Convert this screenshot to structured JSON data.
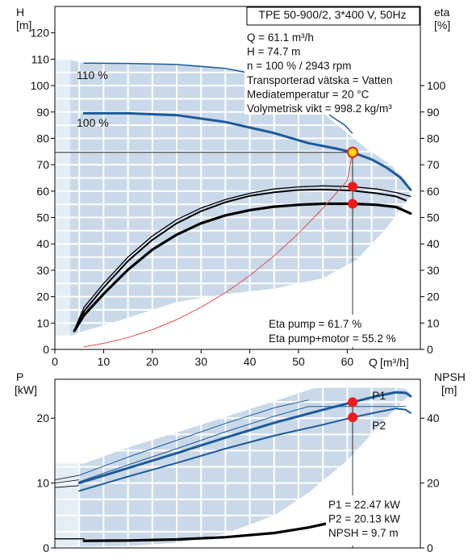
{
  "colors": {
    "envelope": "#c9d9e9",
    "envelope_light": "#e4eef7",
    "curve_blue": "#1d5a99",
    "curve_black": "#000000",
    "system_curve": "#e24a4a",
    "op_point": "#f01a1a",
    "op_point_yellow": "#ffe000",
    "grid": "#ffffff"
  },
  "chart_data": [
    {
      "type": "line",
      "title": "TPE 50-900/2, 3*400 V, 50Hz",
      "xlabel": "Q [m³/h]",
      "x_axis_title": "Q",
      "x_unit": "[m³/h]",
      "ylabel": "H\n[m]",
      "y_axis_title": "H",
      "y_unit": "[m]",
      "y2label": "eta\n[%]",
      "y2_axis_title": "eta",
      "y2_unit": "[%]",
      "xlim": [
        0,
        75
      ],
      "ylim": [
        0,
        130
      ],
      "y2lim": [
        0,
        130
      ],
      "x_ticks": [
        0,
        10,
        20,
        30,
        40,
        50,
        60
      ],
      "y_ticks": [
        0,
        10,
        20,
        30,
        40,
        50,
        60,
        70,
        80,
        90,
        100,
        110,
        120
      ],
      "y2_ticks": [
        0,
        10,
        20,
        30,
        40,
        50,
        60,
        70,
        80,
        90,
        100
      ],
      "grid": true,
      "info_lines": [
        "Q = 61.1 m³/h",
        "H = 74.7 m",
        "n = 100 % / 2943 rpm",
        "Transporterad vätska = Vatten",
        "Mediatemperatur = 20 °C",
        "Volymetrisk vikt = 998.2 kg/m³"
      ],
      "eta_lines": [
        "Eta pump = 61.7 %",
        "Eta pump+motor = 55.2 %"
      ],
      "envelope": {
        "upper": [
          [
            2.5,
            110
          ],
          [
            6,
            108.5
          ],
          [
            20,
            108.3
          ],
          [
            30,
            107.8
          ],
          [
            40,
            105.5
          ],
          [
            50,
            98
          ],
          [
            58,
            85
          ],
          [
            64,
            76
          ],
          [
            69,
            70
          ],
          [
            72,
            64
          ],
          [
            73,
            58
          ]
        ],
        "lower": [
          [
            73,
            58
          ],
          [
            68,
            46
          ],
          [
            62,
            34
          ],
          [
            55,
            27
          ],
          [
            45,
            23
          ],
          [
            35,
            21
          ],
          [
            25,
            18
          ],
          [
            15,
            12
          ],
          [
            8,
            8
          ],
          [
            6,
            7
          ],
          [
            3,
            5
          ],
          [
            2.5,
            110
          ]
        ],
        "light_region": [
          [
            0,
            110
          ],
          [
            3.2,
            110
          ],
          [
            3.2,
            5
          ],
          [
            0,
            5
          ]
        ]
      },
      "series": [
        {
          "name": "110 %",
          "role": "head",
          "style": "blue-thin",
          "points": [
            [
              6,
              108.5
            ],
            [
              15,
              108.4
            ],
            [
              25,
              108.0
            ],
            [
              35,
              106.5
            ],
            [
              42,
              104
            ],
            [
              48,
              100
            ],
            [
              53,
              94
            ],
            [
              57,
              88
            ],
            [
              59.5,
              85
            ],
            [
              61,
              82
            ]
          ]
        },
        {
          "name": "100 %",
          "role": "head",
          "style": "blue-thick",
          "points": [
            [
              6,
              89.5
            ],
            [
              15,
              89.5
            ],
            [
              25,
              88.8
            ],
            [
              35,
              86.2
            ],
            [
              45,
              82
            ],
            [
              52,
              78.2
            ],
            [
              58,
              76
            ],
            [
              61.1,
              74.7
            ],
            [
              65,
              72
            ],
            [
              68,
              69
            ],
            [
              71,
              65
            ],
            [
              73,
              60.5
            ]
          ]
        },
        {
          "name": "",
          "role": "eta-pump-upper",
          "style": "black-thin",
          "points": [
            [
              4,
              7.5
            ],
            [
              6,
              16
            ],
            [
              10,
              25
            ],
            [
              15,
              35
            ],
            [
              20,
              43
            ],
            [
              25,
              49.2
            ],
            [
              30,
              53.6
            ],
            [
              35,
              56.8
            ],
            [
              40,
              59.2
            ],
            [
              45,
              60.8
            ],
            [
              50,
              61.6
            ],
            [
              55,
              62
            ],
            [
              61.1,
              61.7
            ],
            [
              66,
              60.8
            ],
            [
              70,
              59.5
            ],
            [
              73,
              58
            ]
          ]
        },
        {
          "name": "",
          "role": "eta-pump",
          "style": "black-med",
          "points": [
            [
              4,
              7.2
            ],
            [
              6,
              14.5
            ],
            [
              10,
              23.5
            ],
            [
              15,
              33.5
            ],
            [
              20,
              41.5
            ],
            [
              25,
              47.8
            ],
            [
              30,
              52.4
            ],
            [
              35,
              55.8
            ],
            [
              40,
              58.2
            ],
            [
              45,
              59.6
            ],
            [
              50,
              60.4
            ],
            [
              55,
              60.6
            ],
            [
              61.1,
              60.2
            ],
            [
              66,
              59.2
            ],
            [
              70,
              58
            ],
            [
              72,
              56.5
            ]
          ]
        },
        {
          "name": "",
          "role": "eta-pump-motor",
          "style": "black-thick",
          "points": [
            [
              4,
              7
            ],
            [
              6,
              13
            ],
            [
              10,
              21
            ],
            [
              15,
              30.2
            ],
            [
              20,
              37.8
            ],
            [
              25,
              43.5
            ],
            [
              30,
              47.8
            ],
            [
              35,
              50.8
            ],
            [
              40,
              52.8
            ],
            [
              45,
              54.1
            ],
            [
              50,
              54.8
            ],
            [
              55,
              55.2
            ],
            [
              61.1,
              55.2
            ],
            [
              66,
              54.8
            ],
            [
              70,
              54
            ],
            [
              73,
              51.5
            ]
          ]
        },
        {
          "name": "",
          "role": "system-curve",
          "style": "red-thin",
          "points": [
            [
              6,
              1
            ],
            [
              10,
              2.3
            ],
            [
              15,
              4.5
            ],
            [
              20,
              7.5
            ],
            [
              25,
              11.3
            ],
            [
              30,
              16
            ],
            [
              35,
              21.5
            ],
            [
              40,
              28
            ],
            [
              45,
              35.5
            ],
            [
              50,
              44
            ],
            [
              55,
              53.5
            ],
            [
              60,
              64
            ],
            [
              61.1,
              74.7
            ]
          ]
        }
      ],
      "operating_points": [
        {
          "x": 61.1,
          "y": 74.7,
          "style": "yellow"
        },
        {
          "x": 61.1,
          "y": 61.7,
          "style": "red"
        },
        {
          "x": 61.1,
          "y": 55.2,
          "style": "red"
        }
      ],
      "series_labels": [
        "110 %",
        "100 %"
      ]
    },
    {
      "type": "line",
      "ylabel": "P\n[kW]",
      "y_axis_title": "P",
      "y_unit": "[kW]",
      "y2label": "NPSH\n[m]",
      "y2_axis_title": "NPSH",
      "y2_unit": "[m]",
      "xlim": [
        0,
        75
      ],
      "ylim": [
        0,
        26
      ],
      "y2lim": [
        0,
        52
      ],
      "y_ticks": [
        0,
        10,
        20
      ],
      "y2_ticks": [
        0,
        20,
        40
      ],
      "grid": true,
      "info_lines": [
        "P1 = 22.47 kW",
        "P2 = 20.13 kW",
        "NPSH = 9.7 m"
      ],
      "envelope": {
        "upper": [
          [
            6,
            13
          ],
          [
            15,
            15.5
          ],
          [
            25,
            17.8
          ],
          [
            35,
            20.2
          ],
          [
            45,
            22.6
          ],
          [
            53,
            24.6
          ],
          [
            55,
            24.7
          ],
          [
            70,
            24.7
          ],
          [
            72,
            24.5
          ],
          [
            73,
            23.8
          ]
        ],
        "lower": [
          [
            73,
            23.8
          ],
          [
            68,
            20
          ],
          [
            60,
            13.5
          ],
          [
            52,
            8.5
          ],
          [
            45,
            5
          ],
          [
            35,
            2.2
          ],
          [
            25,
            0.8
          ],
          [
            15,
            0.3
          ],
          [
            5,
            0.2
          ],
          [
            5,
            13
          ]
        ]
      },
      "series": [
        {
          "name": "P1",
          "role": "p1",
          "style": "blue-thick",
          "points": [
            [
              5,
              10
            ],
            [
              15,
              12.3
            ],
            [
              25,
              14.6
            ],
            [
              35,
              17
            ],
            [
              45,
              19.3
            ],
            [
              55,
              21.3
            ],
            [
              61.1,
              22.47
            ],
            [
              66,
              23.4
            ],
            [
              70,
              24
            ],
            [
              72,
              23.9
            ],
            [
              73,
              23.4
            ]
          ]
        },
        {
          "name": "P2",
          "role": "p2",
          "style": "blue-med",
          "points": [
            [
              5,
              8.8
            ],
            [
              15,
              11
            ],
            [
              25,
              13.1
            ],
            [
              35,
              15.3
            ],
            [
              45,
              17.3
            ],
            [
              55,
              19
            ],
            [
              61.1,
              20.13
            ],
            [
              66,
              20.9
            ],
            [
              70,
              21.5
            ],
            [
              72,
              21.3
            ],
            [
              73,
              20.8
            ]
          ]
        },
        {
          "name": "",
          "role": "p1-110",
          "style": "blue-thin-upper",
          "points": [
            [
              5,
              11.2
            ],
            [
              15,
              14
            ],
            [
              25,
              16.6
            ],
            [
              35,
              19.2
            ],
            [
              45,
              21.6
            ],
            [
              52,
              22.8
            ]
          ]
        },
        {
          "name": "",
          "role": "p2-110",
          "style": "blue-thin-lower",
          "points": [
            [
              5,
              10.2
            ],
            [
              15,
              12.8
            ],
            [
              25,
              15.3
            ],
            [
              35,
              17.9
            ],
            [
              45,
              20.3
            ],
            [
              52,
              21.8
            ],
            [
              72,
              21.8
            ]
          ]
        },
        {
          "name": "",
          "role": "npsh",
          "style": "black-thick",
          "axis": "y2",
          "points": [
            [
              6,
              2.2
            ],
            [
              15,
              2.3
            ],
            [
              25,
              2.6
            ],
            [
              35,
              3.3
            ],
            [
              45,
              4.6
            ],
            [
              52,
              6.3
            ],
            [
              58,
              8.2
            ],
            [
              61.1,
              9.7
            ]
          ]
        },
        {
          "name": "",
          "role": "npsh-light",
          "style": "black-thin",
          "axis": "y2",
          "points": [
            [
              0,
              2.8
            ],
            [
              6,
              2.8
            ]
          ]
        }
      ],
      "operating_points": [
        {
          "x": 61.1,
          "y": 22.47,
          "style": "red"
        },
        {
          "x": 61.1,
          "y": 20.13,
          "style": "red"
        }
      ]
    }
  ]
}
